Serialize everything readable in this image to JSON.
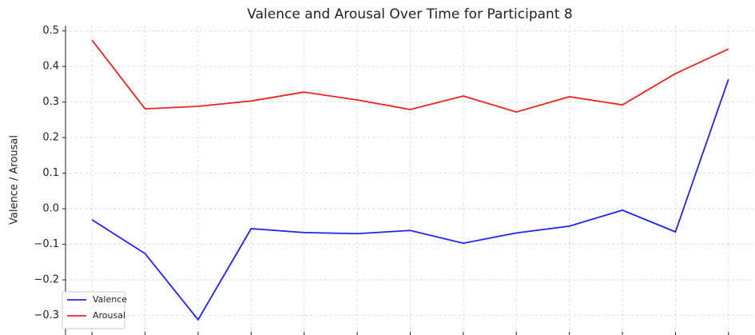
{
  "chart_data": {
    "type": "line",
    "title": "Valence and Arousal Over Time for Participant 8",
    "ylabel": "Valence / Arousal",
    "categories": [
      null,
      null,
      null,
      null,
      null,
      null,
      null,
      null,
      null,
      null,
      null,
      null,
      null
    ],
    "series": [
      {
        "name": "Valence",
        "color": "#2222ee",
        "values": [
          -0.031,
          -0.126,
          -0.312,
          -0.056,
          -0.067,
          -0.07,
          -0.061,
          -0.097,
          -0.068,
          -0.049,
          -0.004,
          -0.065,
          0.364
        ]
      },
      {
        "name": "Arousal",
        "color": "#ee2222",
        "values": [
          0.474,
          0.281,
          0.288,
          0.303,
          0.328,
          0.306,
          0.279,
          0.317,
          0.272,
          0.315,
          0.292,
          0.38,
          0.449
        ]
      }
    ],
    "ylim": [
      -0.355,
      0.515
    ],
    "yticks": [
      {
        "value": -0.3,
        "label": "−0.3"
      },
      {
        "value": -0.2,
        "label": "−0.2"
      },
      {
        "value": -0.1,
        "label": "−0.1"
      },
      {
        "value": 0,
        "label": "0.0"
      },
      0.1,
      0.2,
      0.3,
      0.4,
      0.5
    ],
    "grid": true,
    "legend": "lower left"
  }
}
